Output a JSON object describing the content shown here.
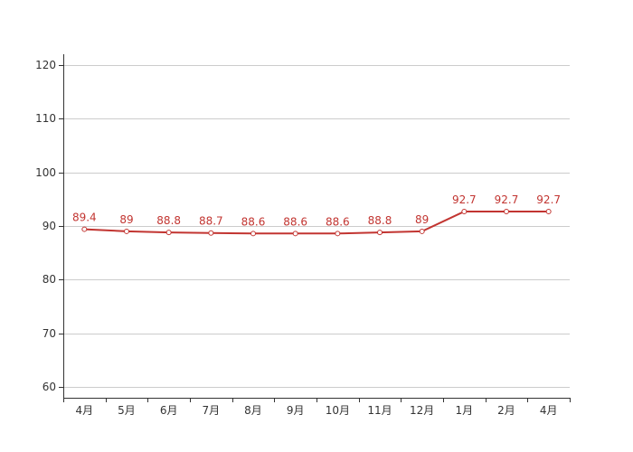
{
  "chart_data": {
    "type": "line",
    "title": "",
    "xlabel": "",
    "ylabel": "",
    "categories": [
      "4月",
      "5月",
      "6月",
      "7月",
      "8月",
      "9月",
      "10月",
      "11月",
      "12月",
      "1月",
      "2月",
      "4月"
    ],
    "series": [
      {
        "values": [
          89.4,
          89,
          88.8,
          88.7,
          88.6,
          88.6,
          88.6,
          88.8,
          89,
          92.7,
          92.7,
          92.7
        ],
        "data_labels": [
          "89.4",
          "89",
          "88.8",
          "88.7",
          "88.6",
          "88.6",
          "88.6",
          "88.8",
          "89",
          "92.7",
          "92.7",
          "92.7"
        ],
        "color": "#c23531"
      }
    ],
    "yticks": [
      60,
      70,
      80,
      90,
      100,
      110,
      120
    ],
    "ylim": [
      58,
      122
    ],
    "grid": true,
    "legend": "none"
  }
}
